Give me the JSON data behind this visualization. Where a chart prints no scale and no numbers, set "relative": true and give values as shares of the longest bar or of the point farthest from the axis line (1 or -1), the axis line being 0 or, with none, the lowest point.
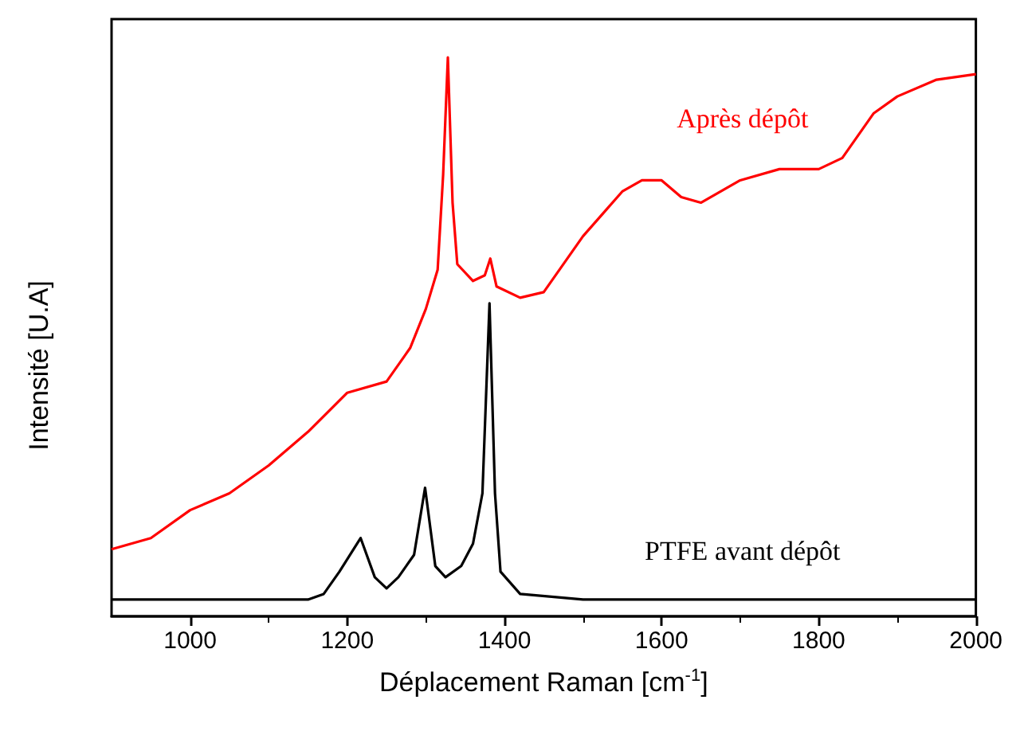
{
  "chart_data": {
    "type": "line",
    "relative": true,
    "xlabel": "Déplacement Raman [cm$^{-1}$]",
    "ylabel": "Intensité [U.A]",
    "xlim": [
      900,
      2000
    ],
    "xticks": [
      1000,
      1200,
      1400,
      1600,
      1800,
      2000
    ],
    "legend": false,
    "grid": false,
    "marker": "none",
    "line_style": "solid",
    "series": [
      {
        "name": "Après dépôt",
        "color": "#ff0000",
        "x": [
          900,
          950,
          1000,
          1050,
          1100,
          1150,
          1200,
          1250,
          1280,
          1300,
          1315,
          1322,
          1328,
          1334,
          1340,
          1360,
          1375,
          1382,
          1390,
          1420,
          1450,
          1500,
          1550,
          1575,
          1600,
          1625,
          1650,
          1700,
          1750,
          1800,
          1830,
          1870,
          1900,
          1950,
          2000
        ],
        "values": [
          0.12,
          0.14,
          0.19,
          0.22,
          0.27,
          0.33,
          0.4,
          0.42,
          0.48,
          0.55,
          0.62,
          0.79,
          1,
          0.74,
          0.63,
          0.6,
          0.61,
          0.64,
          0.59,
          0.57,
          0.58,
          0.68,
          0.76,
          0.78,
          0.78,
          0.75,
          0.74,
          0.78,
          0.8,
          0.8,
          0.82,
          0.9,
          0.93,
          0.96,
          0.97
        ]
      },
      {
        "name": "PTFE avant dépôt",
        "color": "#000000",
        "x": [
          900,
          1000,
          1100,
          1150,
          1170,
          1190,
          1217,
          1235,
          1250,
          1265,
          1285,
          1299,
          1312,
          1325,
          1345,
          1360,
          1372,
          1381,
          1388,
          1395,
          1420,
          1500,
          1600,
          1800,
          2000
        ],
        "values": [
          0.03,
          0.03,
          0.03,
          0.03,
          0.04,
          0.08,
          0.14,
          0.07,
          0.05,
          0.07,
          0.11,
          0.23,
          0.09,
          0.07,
          0.09,
          0.13,
          0.22,
          0.56,
          0.22,
          0.08,
          0.04,
          0.03,
          0.03,
          0.03,
          0.03
        ]
      }
    ]
  }
}
